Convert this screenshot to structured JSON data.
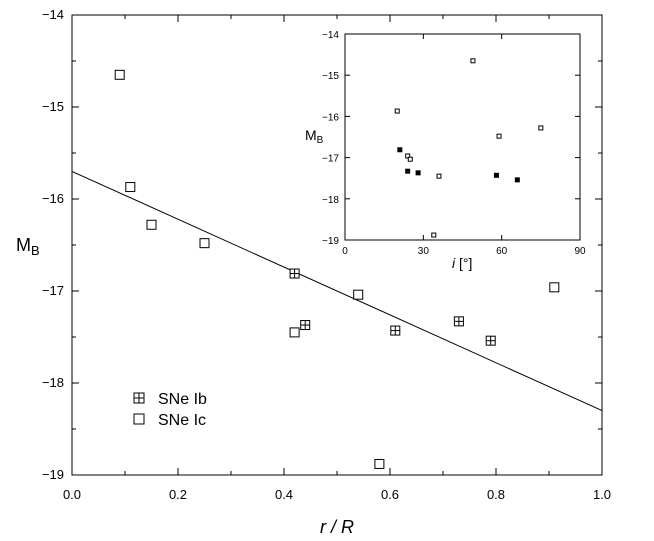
{
  "chart_data": [
    {
      "type": "scatter",
      "title": "",
      "xlabel_main": "r / R",
      "ylabel_main": "M",
      "ylabel_sub": "B",
      "xlim": [
        0.0,
        1.0
      ],
      "ylim": [
        -19,
        -14
      ],
      "x_tick_labels": [
        "0.0",
        "0.2",
        "0.4",
        "0.6",
        "0.8",
        "1.0"
      ],
      "y_tick_labels": [
        "−14",
        "−15",
        "−16",
        "−17",
        "−18",
        "−19"
      ],
      "grid": false,
      "legend_placement": "lower-left",
      "series": [
        {
          "name": "SNe Ib",
          "marker": "boxed-plus",
          "points": [
            {
              "x": 0.42,
              "y": -16.81
            },
            {
              "x": 0.44,
              "y": -17.37
            },
            {
              "x": 0.61,
              "y": -17.43
            },
            {
              "x": 0.73,
              "y": -17.33
            },
            {
              "x": 0.79,
              "y": -17.54
            }
          ]
        },
        {
          "name": "SNe Ic",
          "marker": "open-square",
          "points": [
            {
              "x": 0.09,
              "y": -14.65
            },
            {
              "x": 0.11,
              "y": -15.87
            },
            {
              "x": 0.15,
              "y": -16.28
            },
            {
              "x": 0.25,
              "y": -16.48
            },
            {
              "x": 0.42,
              "y": -17.45
            },
            {
              "x": 0.54,
              "y": -17.04
            },
            {
              "x": 0.58,
              "y": -18.88
            },
            {
              "x": 0.91,
              "y": -16.96
            }
          ]
        }
      ],
      "fit_line": {
        "x": [
          0.0,
          1.0
        ],
        "y": [
          -15.7,
          -18.3
        ]
      }
    },
    {
      "type": "scatter",
      "title": "",
      "xlabel_main": "i",
      "xlabel_unit": "[°]",
      "ylabel_main": "M",
      "ylabel_sub": "B",
      "xlim": [
        0,
        90
      ],
      "ylim": [
        -19,
        -14
      ],
      "x_tick_labels": [
        "0",
        "30",
        "60",
        "90"
      ],
      "y_tick_labels": [
        "−14",
        "−15",
        "−16",
        "−17",
        "−18",
        "−19"
      ],
      "grid": false,
      "series": [
        {
          "marker": "filled-square",
          "points": [
            {
              "x": 21,
              "y": -16.81
            },
            {
              "x": 24,
              "y": -17.33
            },
            {
              "x": 28,
              "y": -17.37
            },
            {
              "x": 58,
              "y": -17.43
            },
            {
              "x": 66,
              "y": -17.54
            }
          ]
        },
        {
          "marker": "open-square",
          "points": [
            {
              "x": 20,
              "y": -15.87
            },
            {
              "x": 24,
              "y": -16.96
            },
            {
              "x": 25,
              "y": -17.04
            },
            {
              "x": 36,
              "y": -17.45
            },
            {
              "x": 34,
              "y": -18.88
            },
            {
              "x": 49,
              "y": -14.65
            },
            {
              "x": 59,
              "y": -16.48
            },
            {
              "x": 75,
              "y": -16.28
            }
          ]
        }
      ]
    }
  ]
}
